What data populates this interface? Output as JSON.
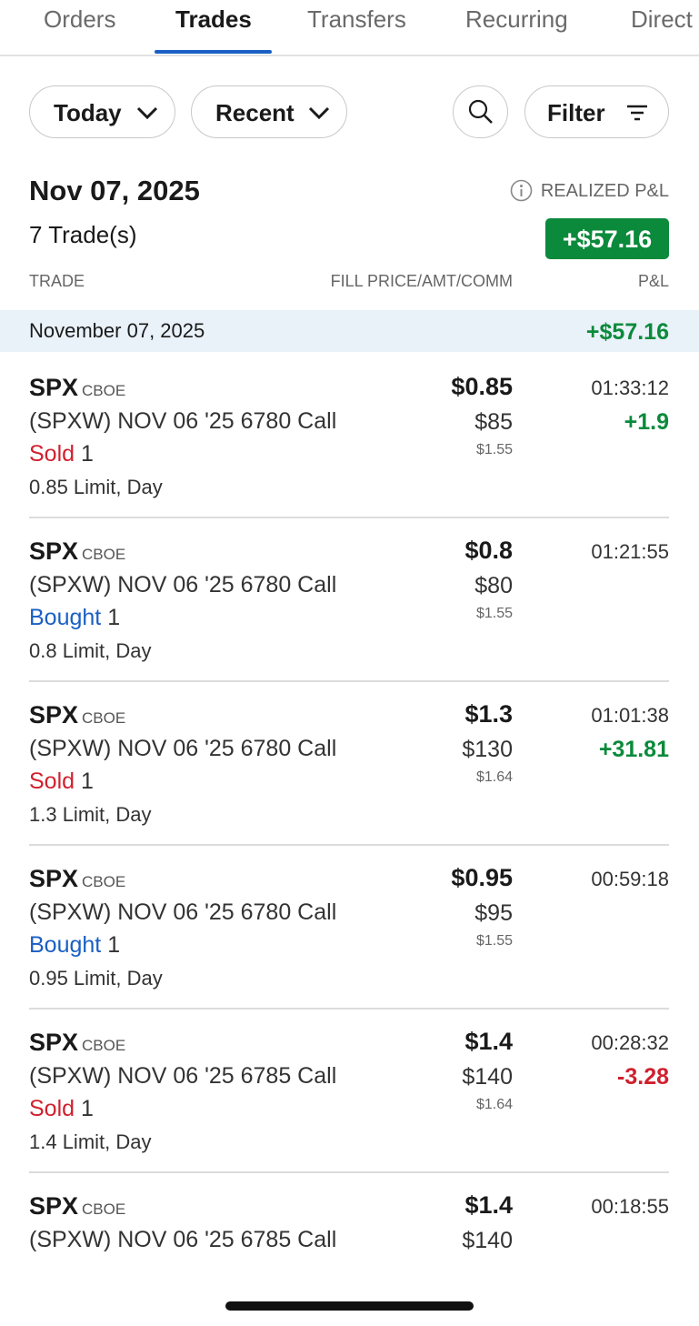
{
  "tabs": [
    "Orders",
    "Trades",
    "Transfers",
    "Recurring",
    "Direct"
  ],
  "active_tab": 1,
  "controls": {
    "period": "Today",
    "sort": "Recent",
    "filter": "Filter"
  },
  "summary": {
    "date": "Nov 07, 2025",
    "trade_count": "7 Trade(s)",
    "realized_label": "REALIZED P&L",
    "realized_value": "+$57.16"
  },
  "columns": [
    "TRADE",
    "FILL PRICE/AMT/COMM",
    "P&L"
  ],
  "group": {
    "date": "November 07, 2025",
    "pnl": "+$57.16"
  },
  "trades": [
    {
      "symbol": "SPX",
      "exchange": "CBOE",
      "description": "(SPXW) NOV 06 '25 6780 Call",
      "side": "Sold",
      "quantity": "1",
      "order": "0.85 Limit, Day",
      "price": "$0.85",
      "amount": "$85",
      "commission": "$1.55",
      "time": "01:33:12",
      "pnl": "+1.9"
    },
    {
      "symbol": "SPX",
      "exchange": "CBOE",
      "description": "(SPXW) NOV 06 '25 6780 Call",
      "side": "Bought",
      "quantity": "1",
      "order": "0.8 Limit, Day",
      "price": "$0.8",
      "amount": "$80",
      "commission": "$1.55",
      "time": "01:21:55"
    },
    {
      "symbol": "SPX",
      "exchange": "CBOE",
      "description": "(SPXW) NOV 06 '25 6780 Call",
      "side": "Sold",
      "quantity": "1",
      "order": "1.3 Limit, Day",
      "price": "$1.3",
      "amount": "$130",
      "commission": "$1.64",
      "time": "01:01:38",
      "pnl": "+31.81"
    },
    {
      "symbol": "SPX",
      "exchange": "CBOE",
      "description": "(SPXW) NOV 06 '25 6780 Call",
      "side": "Bought",
      "quantity": "1",
      "order": "0.95 Limit, Day",
      "price": "$0.95",
      "amount": "$95",
      "commission": "$1.55",
      "time": "00:59:18"
    },
    {
      "symbol": "SPX",
      "exchange": "CBOE",
      "description": "(SPXW) NOV 06 '25 6785 Call",
      "side": "Sold",
      "quantity": "1",
      "order": "1.4 Limit, Day",
      "price": "$1.4",
      "amount": "$140",
      "commission": "$1.64",
      "time": "00:28:32",
      "pnl": "-3.28"
    },
    {
      "symbol": "SPX",
      "exchange": "CBOE",
      "description": "(SPXW) NOV 06 '25 6785 Call",
      "price": "$1.4",
      "amount": "$140",
      "time": "00:18:55"
    }
  ]
}
